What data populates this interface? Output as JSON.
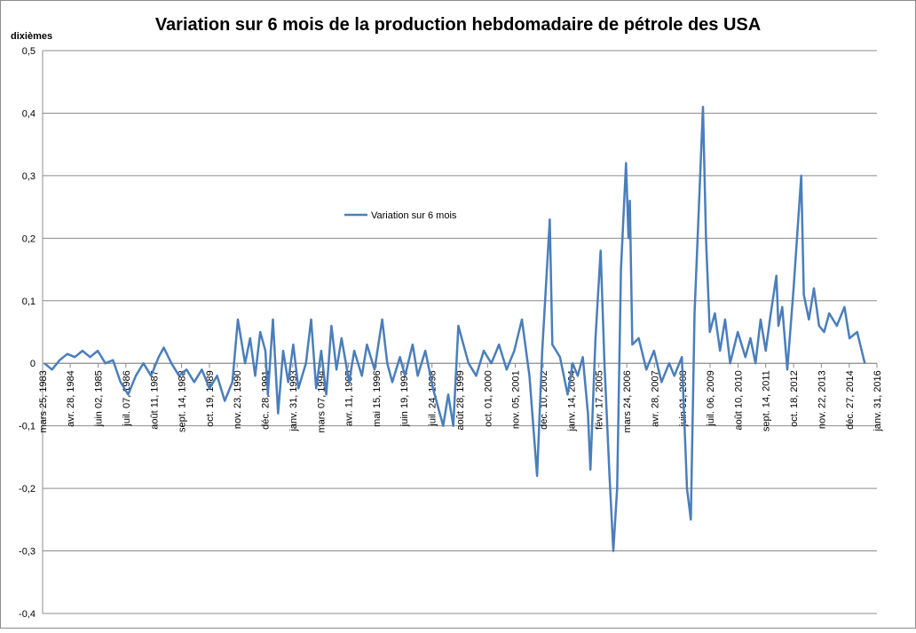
{
  "chart_data": {
    "type": "line",
    "title": "Variation sur 6 mois de la production hebdomadaire de pétrole des USA",
    "y_label": "dixièmes",
    "legend": "top-center",
    "grid": true,
    "xlim": [
      1983.23,
      2016.08
    ],
    "ylim": [
      -0.4,
      0.5
    ],
    "yticks": [
      {
        "value": -0.4,
        "label": "-0,4"
      },
      {
        "value": -0.3,
        "label": "-0,3"
      },
      {
        "value": -0.2,
        "label": "-0,2"
      },
      {
        "value": -0.1,
        "label": "-0,1"
      },
      0,
      {
        "value": 0.1,
        "label": "0,1"
      },
      {
        "value": 0.2,
        "label": "0,2"
      },
      {
        "value": 0.3,
        "label": "0,3"
      },
      {
        "value": 0.4,
        "label": "0,4"
      },
      {
        "value": 0.5,
        "label": "0,5"
      }
    ],
    "xticks": [
      {
        "value": 1983.23,
        "label": "mars 25, 1983"
      },
      {
        "value": 1984.32,
        "label": "avr. 28, 1984"
      },
      {
        "value": 1985.42,
        "label": "juin 02, 1985"
      },
      {
        "value": 1986.51,
        "label": "juil. 07, 1986"
      },
      {
        "value": 1987.61,
        "label": "août 11, 1987"
      },
      {
        "value": 1988.7,
        "label": "sept. 14, 1988"
      },
      {
        "value": 1989.8,
        "label": "oct. 19, 1989"
      },
      {
        "value": 1990.89,
        "label": "nov. 23, 1990"
      },
      {
        "value": 1991.99,
        "label": "déc. 28, 1991"
      },
      {
        "value": 1993.08,
        "label": "janv. 31, 1993"
      },
      {
        "value": 1994.18,
        "label": "mars 07, 1994"
      },
      {
        "value": 1995.27,
        "label": "avr. 11, 1995"
      },
      {
        "value": 1996.37,
        "label": "mai 15, 1996"
      },
      {
        "value": 1997.46,
        "label": "juin 19, 1997"
      },
      {
        "value": 1998.56,
        "label": "juil. 24, 1998"
      },
      {
        "value": 1999.65,
        "label": "août 28, 1999"
      },
      {
        "value": 2000.75,
        "label": "oct. 01, 2000"
      },
      {
        "value": 2001.84,
        "label": "nov. 05, 2001"
      },
      {
        "value": 2002.94,
        "label": "déc. 10, 2002"
      },
      {
        "value": 2004.04,
        "label": "janv. 14, 2004"
      },
      {
        "value": 2005.13,
        "label": "févr. 17, 2005"
      },
      {
        "value": 2006.23,
        "label": "mars 24, 2006"
      },
      {
        "value": 2007.32,
        "label": "avr. 28, 2007"
      },
      {
        "value": 2008.42,
        "label": "juin 01, 2008"
      },
      {
        "value": 2009.51,
        "label": "juil. 06, 2009"
      },
      {
        "value": 2010.61,
        "label": "août 10, 2010"
      },
      {
        "value": 2011.7,
        "label": "sept. 14, 2011"
      },
      {
        "value": 2012.8,
        "label": "oct. 18, 2012"
      },
      {
        "value": 2013.89,
        "label": "nov. 22, 2013"
      },
      {
        "value": 2014.99,
        "label": "déc. 27, 2014"
      },
      {
        "value": 2016.08,
        "label": "janv. 31, 2016"
      }
    ],
    "x": [
      1983.3,
      1983.6,
      1983.9,
      1984.2,
      1984.5,
      1984.8,
      1985.1,
      1985.4,
      1985.7,
      1986.0,
      1986.3,
      1986.6,
      1986.9,
      1987.2,
      1987.5,
      1987.8,
      1988.0,
      1988.3,
      1988.6,
      1988.9,
      1989.2,
      1989.5,
      1989.8,
      1990.1,
      1990.4,
      1990.7,
      1990.92,
      1991.0,
      1991.2,
      1991.4,
      1991.6,
      1991.8,
      1992.0,
      1992.1,
      1992.3,
      1992.5,
      1992.7,
      1992.9,
      1993.1,
      1993.3,
      1993.6,
      1993.8,
      1994.0,
      1994.2,
      1994.4,
      1994.6,
      1994.8,
      1995.0,
      1995.3,
      1995.5,
      1995.8,
      1996.0,
      1996.3,
      1996.6,
      1996.8,
      1997.0,
      1997.3,
      1997.5,
      1997.8,
      1998.0,
      1998.3,
      1998.6,
      1999.0,
      1999.2,
      1999.4,
      1999.6,
      1999.8,
      2000.0,
      2000.3,
      2000.6,
      2000.9,
      2001.2,
      2001.5,
      2001.8,
      2002.1,
      2002.4,
      2002.7,
      2002.9,
      2003.2,
      2003.3,
      2003.6,
      2003.9,
      2004.1,
      2004.3,
      2004.5,
      2004.7,
      2004.8,
      2005.0,
      2005.2,
      2005.35,
      2005.55,
      2005.7,
      2005.85,
      2006.0,
      2006.2,
      2006.3,
      2006.35,
      2006.45,
      2006.7,
      2007.0,
      2007.3,
      2007.6,
      2007.9,
      2008.1,
      2008.4,
      2008.6,
      2008.75,
      2008.9,
      2009.23,
      2009.35,
      2009.5,
      2009.7,
      2009.9,
      2010.1,
      2010.3,
      2010.6,
      2010.9,
      2011.1,
      2011.3,
      2011.5,
      2011.7,
      2011.9,
      2012.12,
      2012.2,
      2012.35,
      2012.55,
      2012.8,
      2013.1,
      2013.2,
      2013.4,
      2013.6,
      2013.8,
      2014.0,
      2014.2,
      2014.5,
      2014.8,
      2015.0,
      2015.3,
      2015.6
    ],
    "series": [
      {
        "name": "Variation sur 6 mois",
        "color": "#4a7ebb",
        "values": [
          0,
          -0.01,
          0.005,
          0.015,
          0.01,
          0.02,
          0.01,
          0.02,
          0,
          0.005,
          -0.03,
          -0.05,
          -0.02,
          0,
          -0.02,
          0.01,
          0.025,
          0,
          -0.02,
          -0.01,
          -0.03,
          -0.01,
          -0.04,
          -0.02,
          -0.06,
          -0.03,
          0.07,
          0.05,
          0,
          0.04,
          -0.02,
          0.05,
          0.02,
          -0.05,
          0.07,
          -0.08,
          0.02,
          -0.03,
          0.03,
          -0.04,
          0,
          0.07,
          -0.04,
          0.02,
          -0.05,
          0.06,
          -0.01,
          0.04,
          -0.03,
          0.02,
          -0.02,
          0.03,
          -0.01,
          0.07,
          0,
          -0.03,
          0.01,
          -0.02,
          0.03,
          -0.02,
          0.02,
          -0.04,
          -0.1,
          -0.05,
          -0.1,
          0.06,
          0.03,
          0,
          -0.02,
          0.02,
          0,
          0.03,
          -0.01,
          0.02,
          0.07,
          -0.02,
          -0.18,
          0.02,
          0.23,
          0.03,
          0.01,
          -0.05,
          0,
          -0.02,
          0.01,
          -0.08,
          -0.17,
          0.04,
          0.18,
          0,
          -0.18,
          -0.3,
          -0.2,
          0.15,
          0.32,
          0.2,
          0.26,
          0.03,
          0.04,
          -0.01,
          0.02,
          -0.03,
          0,
          -0.02,
          0.01,
          -0.2,
          -0.25,
          0.08,
          0.41,
          0.2,
          0.05,
          0.08,
          0.02,
          0.07,
          0,
          0.05,
          0.01,
          0.04,
          0,
          0.07,
          0.02,
          0.08,
          0.14,
          0.06,
          0.09,
          -0.01,
          0.12,
          0.3,
          0.11,
          0.07,
          0.12,
          0.06,
          0.05,
          0.08,
          0.06,
          0.09,
          0.04,
          0.05,
          0
        ]
      }
    ]
  }
}
